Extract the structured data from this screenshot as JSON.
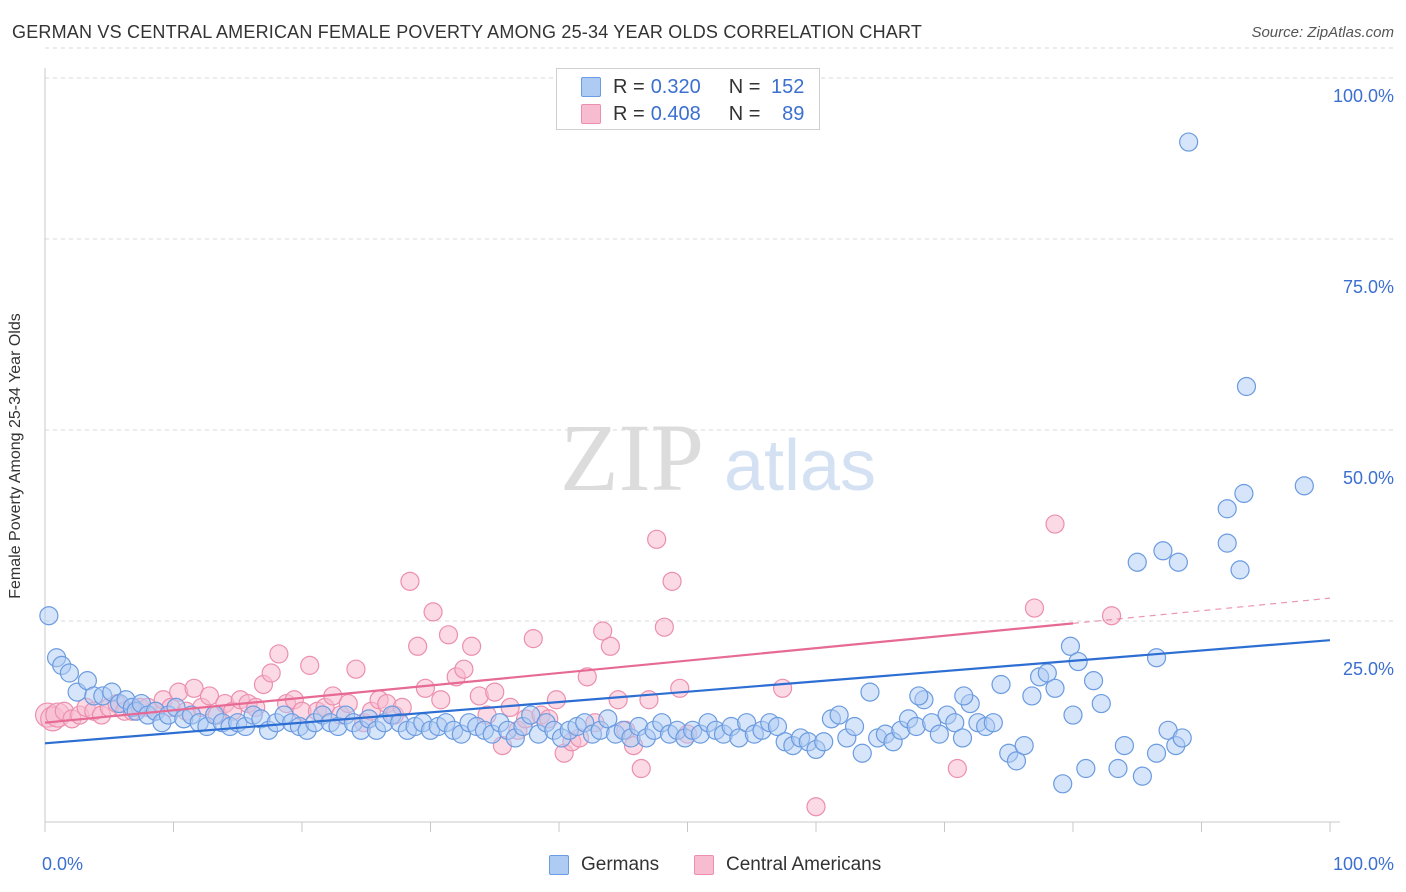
{
  "header": {
    "title": "GERMAN VS CENTRAL AMERICAN FEMALE POVERTY AMONG 25-34 YEAR OLDS CORRELATION CHART",
    "source": "Source: ZipAtlas.com"
  },
  "watermark": {
    "zip": "ZIP",
    "atlas": "atlas"
  },
  "legend": {
    "germans": {
      "r_label": "R =",
      "r_value": "0.320",
      "n_label": "N =",
      "n_value": "152"
    },
    "central": {
      "r_label": "R =",
      "r_value": "0.408",
      "n_label": "N =",
      "n_value": "89"
    }
  },
  "bottom_legend": {
    "germans": "Germans",
    "central": "Central Americans"
  },
  "axis_text": {
    "ylabel": "Female Poverty Among 25-34 Year Olds",
    "x_min": "0.0%",
    "x_max": "100.0%",
    "y_ticks": [
      "100.0%",
      "75.0%",
      "50.0%",
      "25.0%"
    ]
  },
  "colors": {
    "germans_fill": "#aecbf4",
    "germans_stroke": "#6b9be0",
    "germans_line": "#2d6ed3",
    "central_fill": "#f7bcd0",
    "central_stroke": "#ec8fae",
    "central_line": "#e66a93",
    "tick_text": "#3b6fd0",
    "grid": "#d8d8d8"
  },
  "chart_data": {
    "type": "scatter",
    "xlabel": "",
    "ylabel": "Female Poverty Among 25-34 Year Olds",
    "xlim": [
      0,
      100
    ],
    "ylim": [
      0,
      100
    ],
    "y_ticks": [
      25,
      50,
      75,
      100
    ],
    "grid": "horizontal dashed",
    "legend_placement": "top-center",
    "series": [
      {
        "name": "Germans",
        "r": 0.32,
        "n": 152,
        "trend": {
          "x": [
            0,
            100
          ],
          "y": [
            10.3,
            23.8
          ]
        },
        "points": [
          [
            0.3,
            27
          ],
          [
            0.9,
            21.5
          ],
          [
            1.3,
            20.5
          ],
          [
            1.9,
            19.5
          ],
          [
            2.5,
            17
          ],
          [
            3.3,
            18.5
          ],
          [
            3.8,
            16.5
          ],
          [
            4.5,
            16.5
          ],
          [
            5.2,
            17
          ],
          [
            5.8,
            15.5
          ],
          [
            6.3,
            16
          ],
          [
            6.8,
            15
          ],
          [
            7.1,
            14.5
          ],
          [
            7.5,
            15.5
          ],
          [
            8.0,
            14
          ],
          [
            8.6,
            14.5
          ],
          [
            9.1,
            13
          ],
          [
            9.6,
            14
          ],
          [
            10.2,
            15
          ],
          [
            10.8,
            13.5
          ],
          [
            11.4,
            14
          ],
          [
            12.0,
            13
          ],
          [
            12.6,
            12.5
          ],
          [
            13.2,
            14
          ],
          [
            13.8,
            13
          ],
          [
            14.4,
            12.5
          ],
          [
            15.0,
            13
          ],
          [
            15.6,
            12.5
          ],
          [
            16.2,
            14
          ],
          [
            16.8,
            13.5
          ],
          [
            17.4,
            12
          ],
          [
            18.0,
            13
          ],
          [
            18.6,
            14
          ],
          [
            19.2,
            13
          ],
          [
            19.8,
            12.5
          ],
          [
            20.4,
            12
          ],
          [
            21.0,
            13
          ],
          [
            21.6,
            14
          ],
          [
            22.2,
            13
          ],
          [
            22.8,
            12.5
          ],
          [
            23.4,
            14
          ],
          [
            24.0,
            13
          ],
          [
            24.6,
            12
          ],
          [
            25.2,
            13.5
          ],
          [
            25.8,
            12
          ],
          [
            26.4,
            13
          ],
          [
            27.0,
            14
          ],
          [
            27.6,
            13
          ],
          [
            28.2,
            12
          ],
          [
            28.8,
            12.5
          ],
          [
            29.4,
            13
          ],
          [
            30.0,
            12
          ],
          [
            30.6,
            12.5
          ],
          [
            31.2,
            13
          ],
          [
            31.8,
            12
          ],
          [
            32.4,
            11.5
          ],
          [
            33.0,
            13
          ],
          [
            33.6,
            12.5
          ],
          [
            34.2,
            12
          ],
          [
            34.8,
            11.5
          ],
          [
            35.4,
            13
          ],
          [
            36.0,
            12
          ],
          [
            36.6,
            11
          ],
          [
            37.2,
            12.5
          ],
          [
            37.8,
            14
          ],
          [
            38.4,
            11.5
          ],
          [
            39.0,
            13
          ],
          [
            39.6,
            12
          ],
          [
            40.2,
            11
          ],
          [
            40.8,
            12
          ],
          [
            41.4,
            12.5
          ],
          [
            42.0,
            13
          ],
          [
            42.6,
            11.5
          ],
          [
            43.2,
            12
          ],
          [
            43.8,
            13.5
          ],
          [
            44.4,
            11.5
          ],
          [
            45.0,
            12
          ],
          [
            45.6,
            11
          ],
          [
            46.2,
            12.5
          ],
          [
            46.8,
            11
          ],
          [
            47.4,
            12
          ],
          [
            48.0,
            13
          ],
          [
            48.6,
            11.5
          ],
          [
            49.2,
            12
          ],
          [
            49.8,
            11
          ],
          [
            50.4,
            12
          ],
          [
            51.0,
            11.5
          ],
          [
            51.6,
            13
          ],
          [
            52.2,
            12
          ],
          [
            52.8,
            11.5
          ],
          [
            53.4,
            12.5
          ],
          [
            54.0,
            11
          ],
          [
            54.6,
            13
          ],
          [
            55.2,
            11.5
          ],
          [
            55.8,
            12
          ],
          [
            56.4,
            13
          ],
          [
            57.0,
            12.5
          ],
          [
            57.6,
            10.5
          ],
          [
            58.2,
            10
          ],
          [
            58.8,
            11
          ],
          [
            59.4,
            10.5
          ],
          [
            60.0,
            9.5
          ],
          [
            60.6,
            10.5
          ],
          [
            61.2,
            13.5
          ],
          [
            61.8,
            14
          ],
          [
            62.4,
            11
          ],
          [
            63.0,
            12.5
          ],
          [
            63.6,
            9
          ],
          [
            64.2,
            17
          ],
          [
            64.8,
            11
          ],
          [
            65.4,
            11.5
          ],
          [
            66.0,
            10.5
          ],
          [
            66.6,
            12
          ],
          [
            67.2,
            13.5
          ],
          [
            67.8,
            12.5
          ],
          [
            68.4,
            16
          ],
          [
            69.0,
            13
          ],
          [
            69.6,
            11.5
          ],
          [
            70.2,
            14
          ],
          [
            70.8,
            13
          ],
          [
            71.4,
            11
          ],
          [
            72.0,
            15.5
          ],
          [
            72.6,
            13
          ],
          [
            73.2,
            12.5
          ],
          [
            73.8,
            13
          ],
          [
            74.4,
            18
          ],
          [
            75.0,
            9
          ],
          [
            75.6,
            8
          ],
          [
            76.2,
            10
          ],
          [
            76.8,
            16.5
          ],
          [
            77.4,
            19
          ],
          [
            78.0,
            19.5
          ],
          [
            78.6,
            17.5
          ],
          [
            79.2,
            5
          ],
          [
            79.8,
            23
          ],
          [
            80.4,
            21
          ],
          [
            81.0,
            7
          ],
          [
            81.6,
            18.5
          ],
          [
            82.2,
            15.5
          ],
          [
            83.5,
            7
          ],
          [
            84.0,
            10
          ],
          [
            85.4,
            6
          ],
          [
            86.5,
            21.5
          ],
          [
            87.4,
            12
          ],
          [
            88.0,
            10
          ],
          [
            88.5,
            11
          ],
          [
            68.0,
            16.5
          ],
          [
            71.5,
            16.5
          ],
          [
            80.0,
            14
          ],
          [
            86.5,
            9
          ],
          [
            89.0,
            89
          ],
          [
            87.0,
            35.5
          ],
          [
            85.0,
            34
          ],
          [
            88.2,
            34
          ],
          [
            92.0,
            36.5
          ],
          [
            93.0,
            33
          ],
          [
            93.5,
            57
          ],
          [
            93.3,
            43
          ],
          [
            92.0,
            41
          ],
          [
            98.0,
            44
          ]
        ]
      },
      {
        "name": "Central Americans",
        "r": 0.408,
        "n": 89,
        "trend": {
          "x": [
            0,
            80
          ],
          "y": [
            13.0,
            26.0
          ]
        },
        "trend_dashed": {
          "x": [
            80,
            100
          ],
          "y": [
            26.0,
            29.3
          ]
        },
        "points": [
          [
            0.2,
            14
          ],
          [
            0.6,
            13.5
          ],
          [
            1.0,
            14
          ],
          [
            1.5,
            14.5
          ],
          [
            2.1,
            13.5
          ],
          [
            2.7,
            14
          ],
          [
            3.2,
            15
          ],
          [
            3.8,
            14.5
          ],
          [
            4.4,
            14
          ],
          [
            5.0,
            15
          ],
          [
            5.6,
            15.5
          ],
          [
            6.2,
            14.5
          ],
          [
            6.8,
            14.5
          ],
          [
            7.4,
            15
          ],
          [
            8.0,
            15
          ],
          [
            8.6,
            14.5
          ],
          [
            9.2,
            16
          ],
          [
            9.8,
            15
          ],
          [
            10.4,
            17
          ],
          [
            11.0,
            14.5
          ],
          [
            11.6,
            17.5
          ],
          [
            12.2,
            15
          ],
          [
            12.8,
            16.5
          ],
          [
            13.4,
            14
          ],
          [
            14.0,
            15.5
          ],
          [
            14.6,
            14.5
          ],
          [
            15.2,
            16
          ],
          [
            15.8,
            15.5
          ],
          [
            16.4,
            15
          ],
          [
            17.0,
            18
          ],
          [
            17.6,
            19.5
          ],
          [
            18.2,
            22
          ],
          [
            18.8,
            15.5
          ],
          [
            19.4,
            16
          ],
          [
            20.0,
            14.5
          ],
          [
            20.6,
            20.5
          ],
          [
            21.2,
            14.5
          ],
          [
            21.8,
            15
          ],
          [
            22.4,
            16.5
          ],
          [
            23.0,
            14
          ],
          [
            23.6,
            15.5
          ],
          [
            24.2,
            20
          ],
          [
            24.8,
            13
          ],
          [
            25.4,
            14.5
          ],
          [
            26.0,
            16
          ],
          [
            26.6,
            15.5
          ],
          [
            27.2,
            14
          ],
          [
            27.8,
            15
          ],
          [
            28.4,
            31.5
          ],
          [
            29.0,
            23
          ],
          [
            29.6,
            17.5
          ],
          [
            30.2,
            27.5
          ],
          [
            30.8,
            16
          ],
          [
            31.4,
            24.5
          ],
          [
            32.0,
            19
          ],
          [
            32.6,
            20
          ],
          [
            33.2,
            23
          ],
          [
            33.8,
            16.5
          ],
          [
            34.4,
            14
          ],
          [
            35.0,
            17
          ],
          [
            35.6,
            10
          ],
          [
            36.2,
            15
          ],
          [
            36.8,
            12
          ],
          [
            37.4,
            13.5
          ],
          [
            38.0,
            24
          ],
          [
            38.6,
            14
          ],
          [
            39.2,
            13.5
          ],
          [
            39.8,
            16
          ],
          [
            40.4,
            9
          ],
          [
            41.0,
            10.5
          ],
          [
            41.6,
            11
          ],
          [
            42.2,
            19
          ],
          [
            42.8,
            13
          ],
          [
            43.4,
            25
          ],
          [
            44.0,
            23
          ],
          [
            44.6,
            16
          ],
          [
            45.2,
            12
          ],
          [
            45.8,
            10
          ],
          [
            46.4,
            7
          ],
          [
            47.0,
            16
          ],
          [
            47.6,
            37
          ],
          [
            48.2,
            25.5
          ],
          [
            48.8,
            31.5
          ],
          [
            49.4,
            17.5
          ],
          [
            50.0,
            11.5
          ],
          [
            57.4,
            17.5
          ],
          [
            60.0,
            2
          ],
          [
            78.6,
            39
          ],
          [
            77.0,
            28
          ],
          [
            83.0,
            27
          ],
          [
            71.0,
            7
          ]
        ]
      }
    ]
  }
}
